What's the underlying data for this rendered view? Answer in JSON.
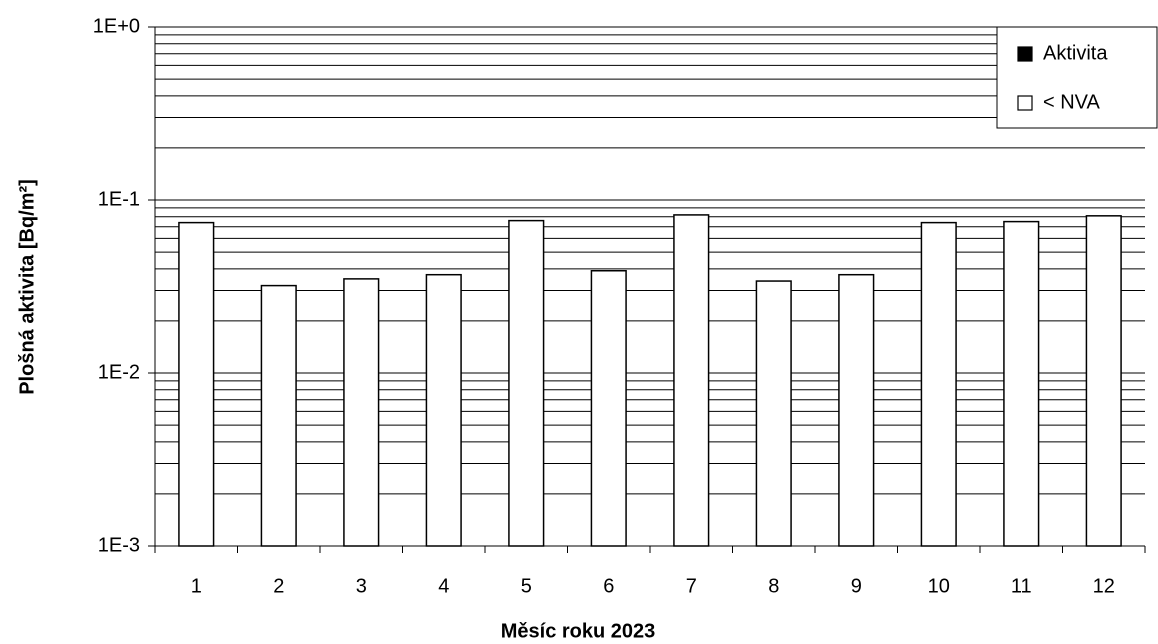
{
  "chart_data": {
    "type": "bar",
    "x_label": "Měsíc roku 2023",
    "y_label": "Plošná aktivita [Bq/m²]",
    "categories": [
      "1",
      "2",
      "3",
      "4",
      "5",
      "6",
      "7",
      "8",
      "9",
      "10",
      "11",
      "12"
    ],
    "series": [
      {
        "name": "Aktivita",
        "color": "#000000",
        "values": [
          null,
          null,
          null,
          null,
          null,
          null,
          null,
          null,
          null,
          null,
          null,
          null
        ]
      },
      {
        "name": "< NVA",
        "color": "#ffffff",
        "values": [
          0.074,
          0.032,
          0.035,
          0.037,
          0.076,
          0.039,
          0.082,
          0.034,
          0.037,
          0.074,
          0.075,
          0.081
        ]
      }
    ],
    "log_scale": true,
    "ylim": [
      0.001,
      1
    ],
    "yticks": [
      {
        "value": 0.001,
        "label": "1E-3"
      },
      {
        "value": 0.01,
        "label": "1E-2"
      },
      {
        "value": 0.1,
        "label": "1E-1"
      },
      {
        "value": 1,
        "label": "1E+0"
      }
    ],
    "yminor": [
      0.002,
      0.003,
      0.004,
      0.005,
      0.006,
      0.007,
      0.008,
      0.009,
      0.02,
      0.03,
      0.04,
      0.05,
      0.06,
      0.07,
      0.08,
      0.09,
      0.2,
      0.3,
      0.4,
      0.5,
      0.6,
      0.7,
      0.8,
      0.9
    ],
    "grid": true,
    "legend": "top-right"
  }
}
